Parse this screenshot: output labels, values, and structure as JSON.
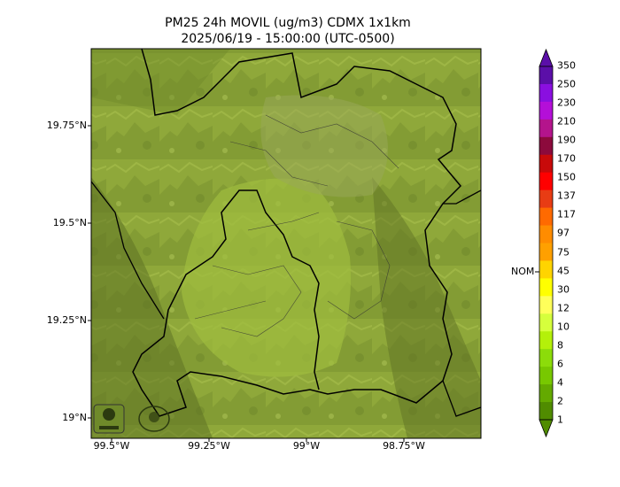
{
  "title_line1": "PM25 24h MOVIL (ug/m3) CDMX 1x1km",
  "title_line2": "2025/06/19 - 15:00:00 (UTC-0500)",
  "y_ticks": [
    "19.75°N",
    "19.5°N",
    "19.25°N",
    "19°N"
  ],
  "x_ticks": [
    "99.5°W",
    "99.25°W",
    "99°W",
    "98.75°W"
  ],
  "colorbar": {
    "labels": [
      "350",
      "250",
      "230",
      "210",
      "190",
      "170",
      "150",
      "137",
      "117",
      "97",
      "75",
      "45",
      "30",
      "12",
      "10",
      "8",
      "6",
      "4",
      "2",
      "1"
    ],
    "colors": [
      "#5b0fa8",
      "#8a0fe0",
      "#b40fd8",
      "#b4148c",
      "#8c0a3c",
      "#c80a0a",
      "#ff0000",
      "#e83c14",
      "#ff6a00",
      "#ff8c00",
      "#ffa000",
      "#ffd400",
      "#ffff00",
      "#ffff5a",
      "#d6ff3c",
      "#b4f00a",
      "#8cdc0a",
      "#78c800",
      "#64aa00",
      "#508c00"
    ],
    "marker_label": "NOM",
    "over_color": "#5b0fa8",
    "under_color": "#508c00"
  },
  "logos": [
    "SEDEMA",
    "CALIDAD DEL AIRE"
  ]
}
